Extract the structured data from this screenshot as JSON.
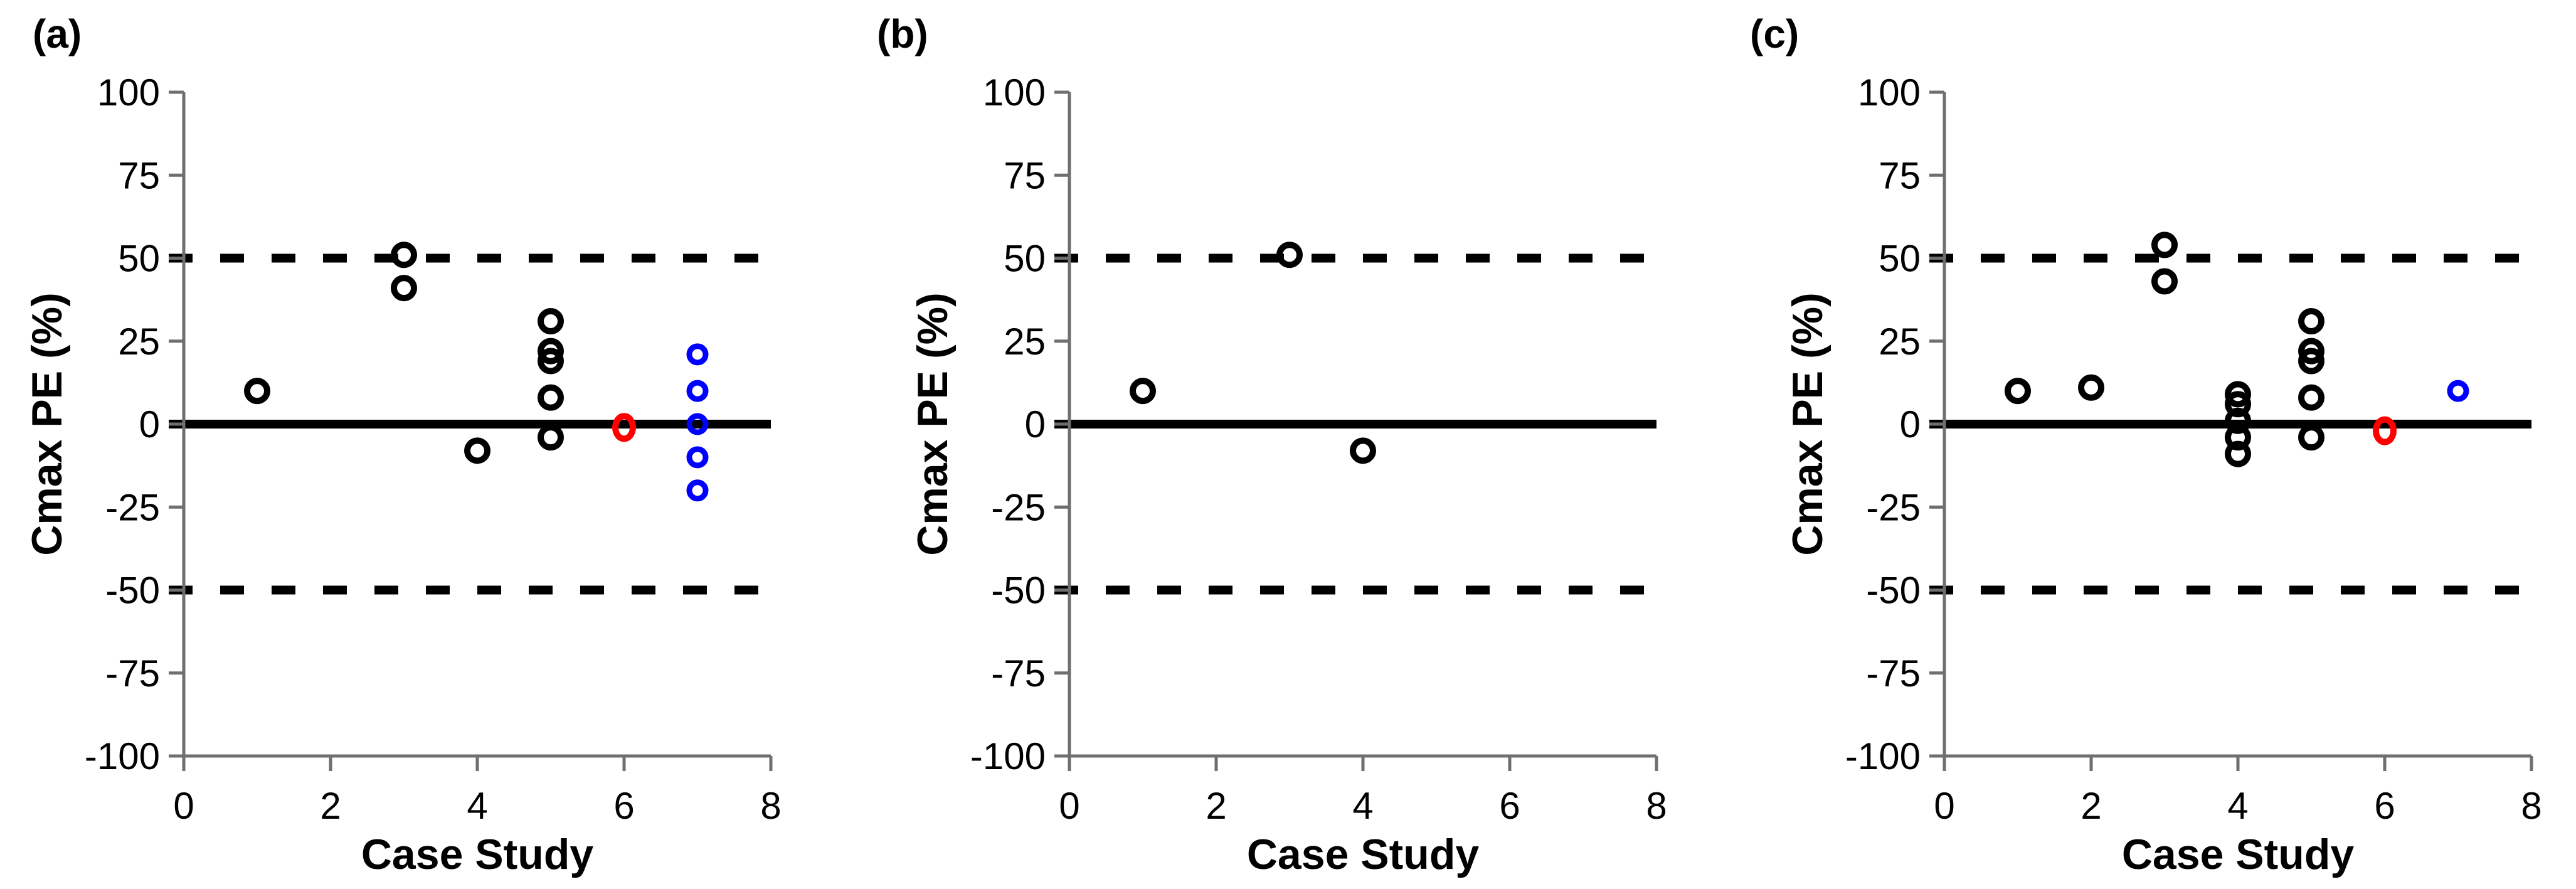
{
  "figure": {
    "background": "#ffffff",
    "marker_colors": {
      "black": "#000000",
      "red": "#ff0000",
      "blue": "#0000ff"
    }
  },
  "chart_data": [
    {
      "type": "scatter",
      "panel_label": "(a)",
      "xlabel": "Case Study",
      "ylabel": "Cmax PE (%)",
      "xlim": [
        0,
        8
      ],
      "ylim": [
        -100,
        100
      ],
      "xticks": [
        0,
        2,
        4,
        6,
        8
      ],
      "yticks": [
        -100,
        -75,
        -50,
        -25,
        0,
        25,
        50,
        75,
        100
      ],
      "grid": false,
      "legend": false,
      "reference_lines": [
        {
          "y": 50,
          "style": "dashed",
          "color": "#000000"
        },
        {
          "y": 0,
          "style": "solid",
          "color": "#000000"
        },
        {
          "y": -50,
          "style": "dashed",
          "color": "#000000"
        }
      ],
      "series": [
        {
          "name": "black-open-circles",
          "color": "#000000",
          "points": [
            [
              1,
              10
            ],
            [
              3,
              51
            ],
            [
              3,
              41
            ],
            [
              4,
              -8
            ],
            [
              5,
              31
            ],
            [
              5,
              22
            ],
            [
              5,
              19
            ],
            [
              5,
              8
            ],
            [
              5,
              -4
            ]
          ]
        },
        {
          "name": "red-open-circle",
          "color": "#ff0000",
          "points": [
            [
              6,
              -1
            ]
          ]
        },
        {
          "name": "blue-open-circles",
          "color": "#0000ff",
          "points": [
            [
              7,
              21
            ],
            [
              7,
              10
            ],
            [
              7,
              0
            ],
            [
              7,
              -10
            ],
            [
              7,
              -20
            ]
          ]
        }
      ]
    },
    {
      "type": "scatter",
      "panel_label": "(b)",
      "xlabel": "Case Study",
      "ylabel": "Cmax PE (%)",
      "xlim": [
        0,
        8
      ],
      "ylim": [
        -100,
        100
      ],
      "xticks": [
        0,
        2,
        4,
        6,
        8
      ],
      "yticks": [
        -100,
        -75,
        -50,
        -25,
        0,
        25,
        50,
        75,
        100
      ],
      "grid": false,
      "legend": false,
      "reference_lines": [
        {
          "y": 50,
          "style": "dashed",
          "color": "#000000"
        },
        {
          "y": 0,
          "style": "solid",
          "color": "#000000"
        },
        {
          "y": -50,
          "style": "dashed",
          "color": "#000000"
        }
      ],
      "series": [
        {
          "name": "black-open-circles",
          "color": "#000000",
          "points": [
            [
              1,
              10
            ],
            [
              3,
              51
            ],
            [
              4,
              -8
            ]
          ]
        },
        {
          "name": "red-open-circle",
          "color": "#ff0000",
          "points": []
        },
        {
          "name": "blue-open-circles",
          "color": "#0000ff",
          "points": []
        }
      ]
    },
    {
      "type": "scatter",
      "panel_label": "(c)",
      "xlabel": "Case Study",
      "ylabel": "Cmax PE (%)",
      "xlim": [
        0,
        8
      ],
      "ylim": [
        -100,
        100
      ],
      "xticks": [
        0,
        2,
        4,
        6,
        8
      ],
      "yticks": [
        -100,
        -75,
        -50,
        -25,
        0,
        25,
        50,
        75,
        100
      ],
      "grid": false,
      "legend": false,
      "reference_lines": [
        {
          "y": 50,
          "style": "dashed",
          "color": "#000000"
        },
        {
          "y": 0,
          "style": "solid",
          "color": "#000000"
        },
        {
          "y": -50,
          "style": "dashed",
          "color": "#000000"
        }
      ],
      "series": [
        {
          "name": "black-open-circles",
          "color": "#000000",
          "points": [
            [
              1,
              10
            ],
            [
              2,
              11
            ],
            [
              3,
              54
            ],
            [
              3,
              43
            ],
            [
              4,
              9
            ],
            [
              4,
              6
            ],
            [
              4,
              1
            ],
            [
              4,
              -4
            ],
            [
              4,
              -9
            ],
            [
              5,
              31
            ],
            [
              5,
              22
            ],
            [
              5,
              19
            ],
            [
              5,
              8
            ],
            [
              5,
              -4
            ]
          ]
        },
        {
          "name": "red-open-circle",
          "color": "#ff0000",
          "points": [
            [
              6,
              -2
            ]
          ]
        },
        {
          "name": "blue-open-circle",
          "color": "#0000ff",
          "points": [
            [
              7,
              10
            ]
          ]
        }
      ]
    }
  ]
}
